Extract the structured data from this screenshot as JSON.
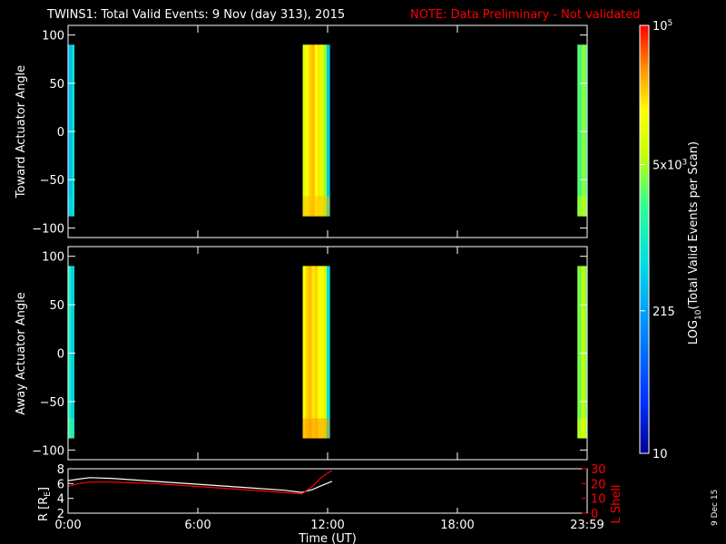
{
  "header": {
    "title": "TWINS1: Total Valid Events:  9 Nov (day 313), 2015",
    "note": "NOTE: Data Preliminary - Not validated",
    "note_color": "#ff0000"
  },
  "footer": {
    "xlabel": "Time (UT)",
    "plot_date": "9 Dec 15"
  },
  "colorbar": {
    "label": "LOG10(Total Valid Events per Scan)",
    "label_main": "LOG",
    "label_sub": "10",
    "label_rest": "(Total Valid Events per Scan)",
    "scale": "log",
    "range": [
      10,
      100000
    ],
    "ticks": [
      {
        "value": 10,
        "label": "10"
      },
      {
        "value": 215,
        "label": "215"
      },
      {
        "value": 5000,
        "label_mant": "5x10",
        "label_exp": "3"
      },
      {
        "value": 100000,
        "label_mant": "10",
        "label_exp": "5"
      }
    ]
  },
  "chart_data": [
    {
      "type": "heatmap",
      "name": "toward",
      "ylabel": "Toward Actuator Angle",
      "xlim": [
        0,
        24
      ],
      "ylim": [
        -110,
        110
      ],
      "yticks": [
        100,
        50,
        0,
        -50,
        -100
      ],
      "xtick_labels": [
        "0:00",
        "6:00",
        "12:00",
        "18:00",
        "23:59"
      ],
      "angle_range": [
        -88,
        90
      ],
      "blocks": [
        {
          "t_start": 0.0,
          "t_end": 0.28,
          "level": "~300-1500 counts (light blue to cyan, greener at low angles)"
        },
        {
          "t_start": 10.85,
          "t_end": 12.1,
          "level": "~3000-20000 counts (yellow to orange core)"
        },
        {
          "t_start": 23.55,
          "t_end": 23.99,
          "level": "~2000-6000 counts (green to yellow)"
        }
      ]
    },
    {
      "type": "heatmap",
      "name": "away",
      "ylabel": "Away Actuator Angle",
      "xlim": [
        0,
        24
      ],
      "ylim": [
        -110,
        110
      ],
      "yticks": [
        100,
        50,
        0,
        -50,
        -100
      ],
      "xtick_labels": [
        "0:00",
        "6:00",
        "12:00",
        "18:00",
        "23:59"
      ],
      "angle_range": [
        -88,
        90
      ],
      "blocks": [
        {
          "t_start": 0.0,
          "t_end": 0.28,
          "level": "~300-1500 counts (cyan to green)"
        },
        {
          "t_start": 10.85,
          "t_end": 12.1,
          "level": "~5000-30000 counts (yellow to orange)"
        },
        {
          "t_start": 23.55,
          "t_end": 23.99,
          "level": "~2000-6000 counts (green to yellow)"
        }
      ]
    },
    {
      "type": "line",
      "name": "orbit",
      "ylabel": "R [RE]",
      "ylabel_main": "R [R",
      "ylabel_sub": "E",
      "ylabel_end": "]",
      "y2label": "L Shell",
      "xlim": [
        0,
        24
      ],
      "ylim": [
        2,
        8
      ],
      "yticks": [
        2,
        4,
        6,
        8
      ],
      "y2lim": [
        0,
        30
      ],
      "y2ticks": [
        0,
        10,
        20,
        30
      ],
      "xtick_labels": [
        "0:00",
        "6:00",
        "12:00",
        "18:00",
        "23:59"
      ],
      "series": [
        {
          "axis": "left",
          "color": "#ffffff",
          "x": [
            0.0,
            0.5,
            1.0,
            2.0,
            4.0,
            6.0,
            8.0,
            10.0,
            10.8,
            11.3,
            11.7,
            12.2
          ],
          "y": [
            6.4,
            6.6,
            6.8,
            6.7,
            6.3,
            5.9,
            5.5,
            5.1,
            4.8,
            5.2,
            5.7,
            6.3
          ]
        },
        {
          "axis": "right",
          "color": "#ff0000",
          "x": [
            0.0,
            0.5,
            1.0,
            2.0,
            4.0,
            6.0,
            8.0,
            10.0,
            10.8,
            11.3,
            11.7,
            12.2
          ],
          "y": [
            18,
            20,
            21,
            21,
            20,
            18,
            16,
            14,
            13,
            18,
            24,
            29
          ]
        }
      ]
    }
  ]
}
